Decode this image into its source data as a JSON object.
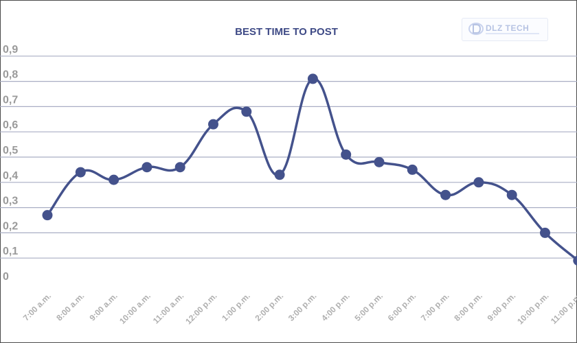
{
  "chart_data": {
    "type": "line",
    "title": "BEST TIME TO POST",
    "xlabel": "",
    "ylabel": "",
    "categories": [
      "7:00 a.m.",
      "8:00 a.m.",
      "9:00 a.m.",
      "10:00 a.m.",
      "11:00 a.m.",
      "12:00 p.m.",
      "1:00 p.m.",
      "2:00 p.m.",
      "3:00 p.m.",
      "4:00 p.m.",
      "5:00 p.m.",
      "6:00 p.m.",
      "7:00 p.m.",
      "8:00 p.m.",
      "9:00 p.m.",
      "10:00 p.m.",
      "11:00 p.m."
    ],
    "series": [
      {
        "values": [
          0.27,
          0.44,
          0.41,
          0.46,
          0.46,
          0.63,
          0.68,
          0.43,
          0.81,
          0.51,
          0.48,
          0.45,
          0.35,
          0.4,
          0.35,
          0.2,
          0.09
        ]
      }
    ],
    "yticks": [
      "0",
      "0,1",
      "0,2",
      "0,3",
      "0,4",
      "0,5",
      "0,6",
      "0,7",
      "0,8",
      "0,9"
    ],
    "ylim": [
      0,
      0.9
    ],
    "grid": true,
    "legend": "none",
    "smooth": true,
    "colors": {
      "series": "#44528c",
      "grid": "#a9aec4",
      "title": "#3e4a86",
      "tick": "#9a9a9a"
    }
  },
  "watermark": {
    "text": "DLZ TECH"
  }
}
